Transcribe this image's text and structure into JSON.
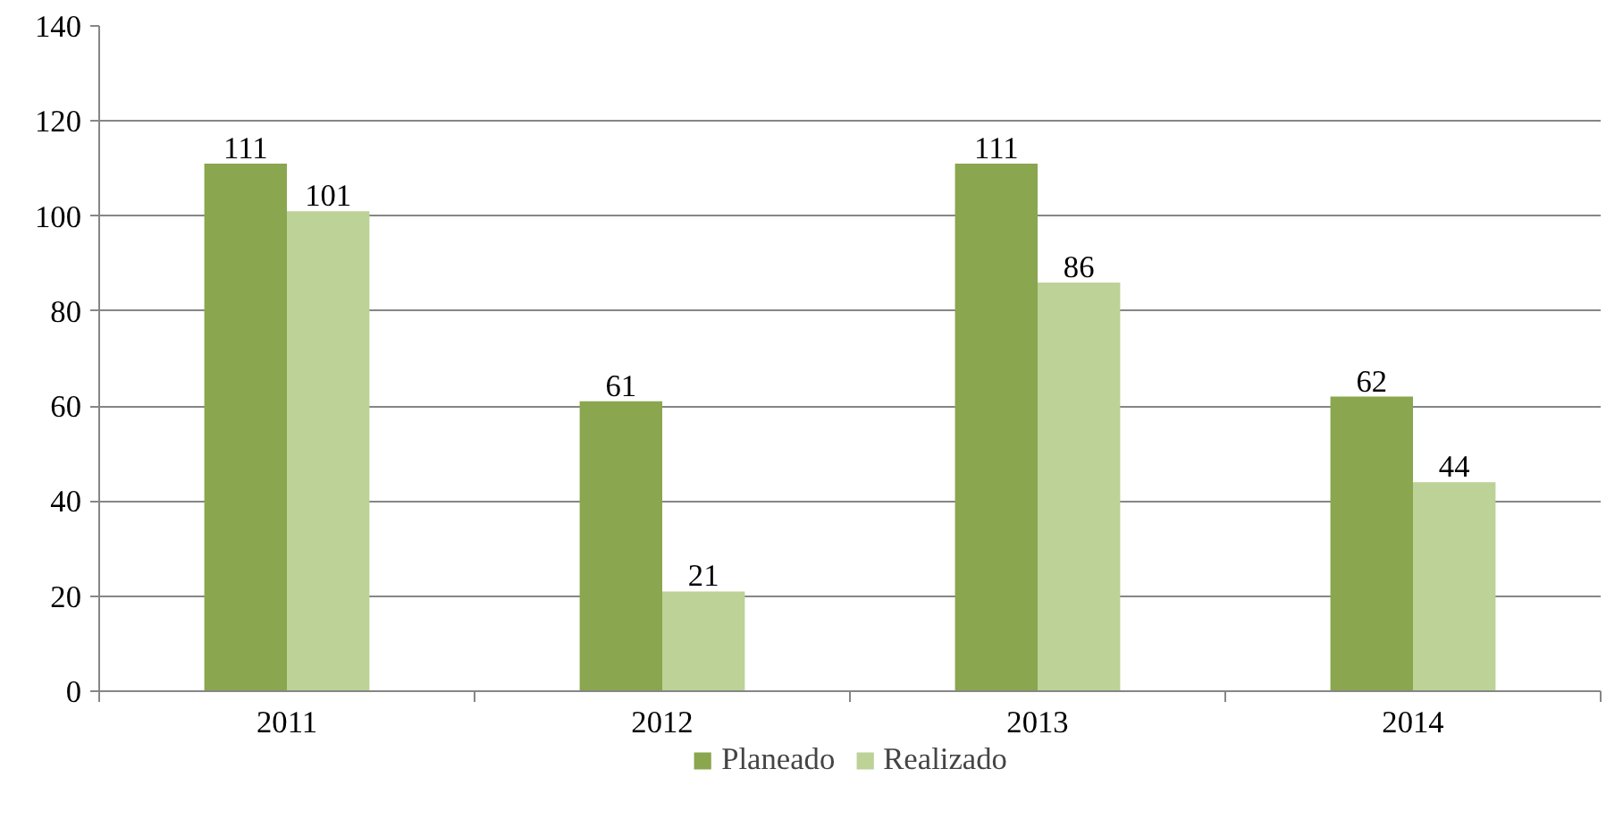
{
  "chart_data": {
    "type": "bar",
    "categories": [
      "2011",
      "2012",
      "2013",
      "2014"
    ],
    "series": [
      {
        "name": "Planeado",
        "color": "#8aa64e",
        "values": [
          111,
          61,
          111,
          62
        ]
      },
      {
        "name": "Realizado",
        "color": "#bcd297",
        "values": [
          101,
          21,
          86,
          44
        ]
      }
    ],
    "ylim": [
      0,
      140
    ],
    "yticks": [
      0,
      20,
      40,
      60,
      80,
      100,
      120,
      140
    ],
    "grid": "y",
    "legend": "bottom",
    "data_labels": true
  }
}
